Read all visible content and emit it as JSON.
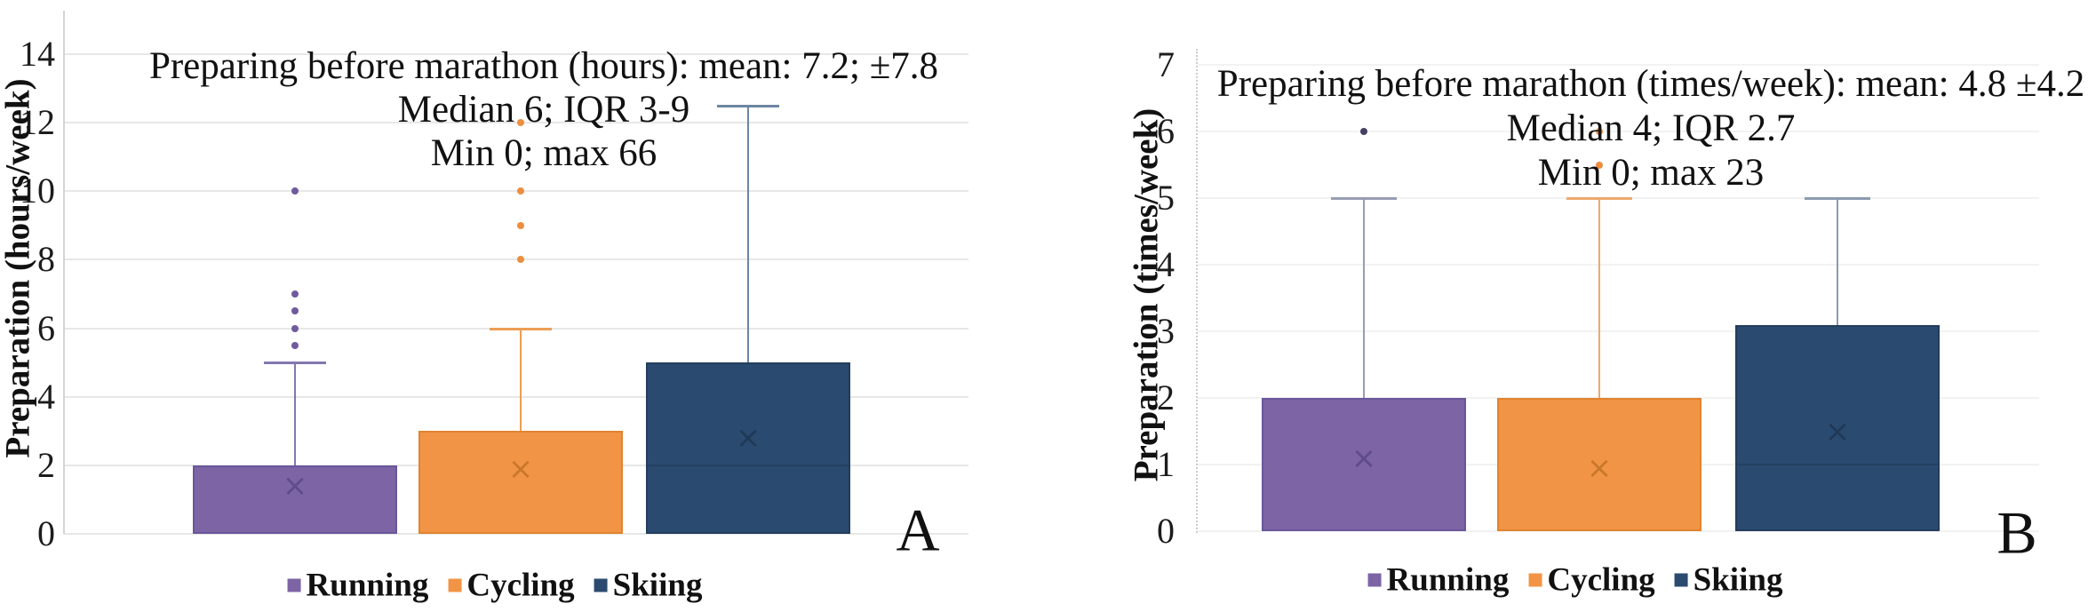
{
  "figure_title": "Marathon preparation box plots",
  "chart_data": [
    {
      "type": "box",
      "corner_label": "A",
      "title_lines": [
        "Preparing before marathon (hours): mean: 7.2; ±7.8",
        "Median 6; IQR 3-9",
        "Min 0; max 66"
      ],
      "ylabel": "Preparation (hours/week)",
      "ylim": [
        0,
        14
      ],
      "ytick_step": 2,
      "yticks": [
        "0",
        "2",
        "4",
        "6",
        "8",
        "10",
        "12",
        "14"
      ],
      "grid": true,
      "legend_position": "bottom",
      "mean_marker_glyph": "×",
      "categories": [
        "Running",
        "Cycling",
        "Skiing"
      ],
      "series": [
        {
          "name": "Running",
          "q1": 0,
          "median": 0,
          "q3": 2,
          "whisker_low": 0,
          "whisker_high": 5,
          "mean": 1.4,
          "outliers": [
            5.5,
            6,
            6.5,
            7,
            10
          ],
          "fill": "#7C64A5",
          "border": "#6B569B",
          "whisker_color": "#8376AE",
          "mean_color": "#50407A",
          "outlier_color": "#6F5A9E"
        },
        {
          "name": "Cycling",
          "q1": 0,
          "median": 0,
          "q3": 3,
          "whisker_low": 0,
          "whisker_high": 6,
          "mean": 1.9,
          "outliers": [
            8,
            9,
            10,
            12
          ],
          "fill": "#F29445",
          "border": "#E0842F",
          "whisker_color": "#EC9E55",
          "mean_color": "#B26A1F",
          "outlier_color": "#ED8E3E"
        },
        {
          "name": "Skiing",
          "q1": 0,
          "median": 2,
          "q3": 5,
          "whisker_low": 0,
          "whisker_high": 12.5,
          "mean": 2.8,
          "outliers": [],
          "fill": "#2B4A6F",
          "border": "#233D5C",
          "whisker_color": "#6E86A2",
          "mean_color": "#19304D",
          "outlier_color": "#2B4A6F",
          "median_color": "#1E3A58"
        }
      ]
    },
    {
      "type": "box",
      "corner_label": "B",
      "title_lines": [
        "Preparing before marathon (times/week): mean: 4.8 ±4.2",
        "Median 4; IQR 2.7",
        "Min 0; max 23"
      ],
      "ylabel": "Preparation (times/week)",
      "ylim": [
        0,
        7
      ],
      "ytick_step": 1,
      "yticks": [
        "0",
        "1",
        "2",
        "3",
        "4",
        "5",
        "6",
        "7"
      ],
      "grid": true,
      "legend_position": "bottom",
      "mean_marker_glyph": "×",
      "categories": [
        "Running",
        "Cycling",
        "Skiing"
      ],
      "series": [
        {
          "name": "Running",
          "q1": 0,
          "median": 0,
          "q3": 2,
          "whisker_low": 0,
          "whisker_high": 5,
          "mean": 1.1,
          "outliers": [
            6
          ],
          "fill": "#7C64A5",
          "border": "#6B569B",
          "whisker_color": "#979DB2",
          "mean_color": "#50407A",
          "outlier_color": "#454163"
        },
        {
          "name": "Cycling",
          "q1": 0,
          "median": 0,
          "q3": 2,
          "whisker_low": 0,
          "whisker_high": 5,
          "mean": 0.95,
          "outliers": [
            5.5,
            6
          ],
          "fill": "#F29445",
          "border": "#E0842F",
          "whisker_color": "#ECA96F",
          "mean_color": "#B26A1F",
          "outlier_color": "#ED8E3E"
        },
        {
          "name": "Skiing",
          "q1": 0,
          "median": 1,
          "q3": 3.1,
          "whisker_low": 0,
          "whisker_high": 5,
          "mean": 1.5,
          "outliers": [],
          "fill": "#2B4A6F",
          "border": "#233D5C",
          "whisker_color": "#8C9BAE",
          "mean_color": "#19304D",
          "outlier_color": "#2B4A6F",
          "median_color": "#1E3A58"
        }
      ]
    }
  ]
}
